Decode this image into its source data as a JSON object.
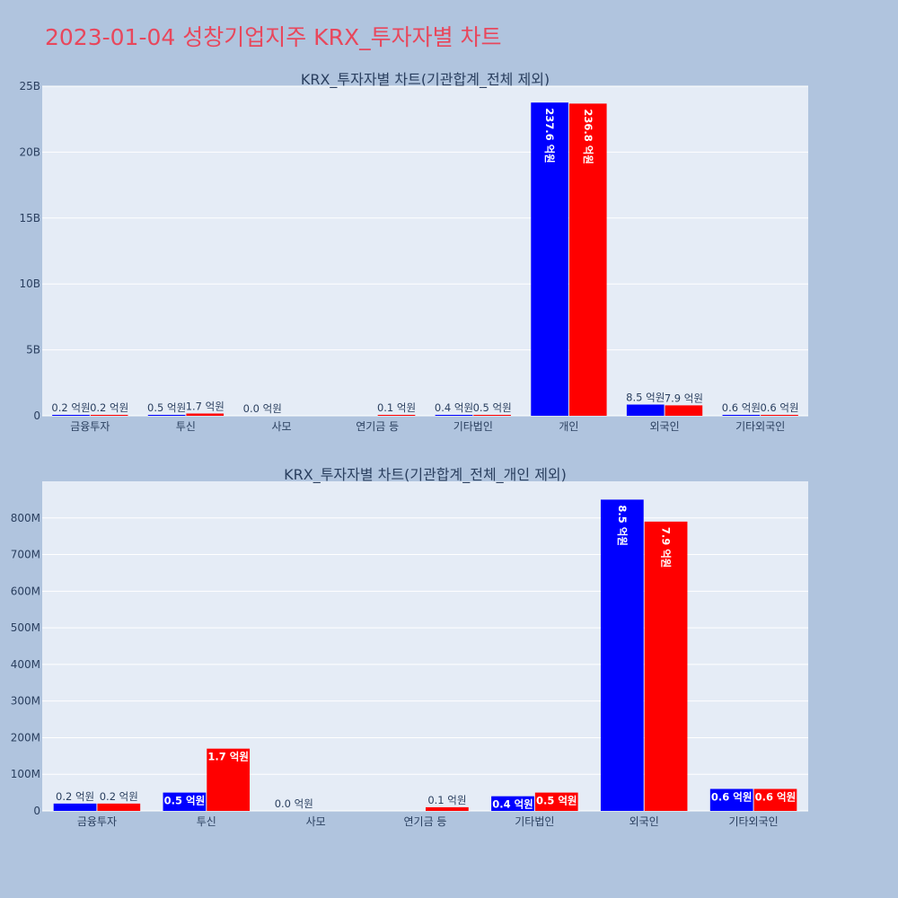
{
  "page_title": "2023-01-04 성창기업지주 KRX_투자자별 차트",
  "colors": {
    "buy": "#0000ff",
    "sell": "#ff0000",
    "title": "#e8475c",
    "background": "#b0c4de",
    "plot": "#e5ecf6"
  },
  "chart_data": [
    {
      "type": "bar",
      "title": "KRX_투자자별 차트(기관합계_전체 제외)",
      "categories": [
        "금융투자",
        "투신",
        "사모",
        "연기금 등",
        "기타법인",
        "개인",
        "외국인",
        "기타외국인"
      ],
      "y_tick_labels": [
        "0",
        "5B",
        "10B",
        "15B",
        "20B",
        "25B"
      ],
      "y_tick_values": [
        0,
        5000000000,
        10000000000,
        15000000000,
        20000000000,
        25000000000
      ],
      "ylim": [
        0,
        25000000000
      ],
      "grid": true,
      "series": [
        {
          "color": "#0000ff",
          "values": [
            20000000,
            50000000,
            0,
            0,
            40000000,
            23760000000,
            850000000,
            60000000
          ],
          "labels": [
            "0.2 억원",
            "0.5 억원",
            "0.0 억원",
            "",
            "0.4 억원",
            "237.6 억원",
            "8.5 억원",
            "0.6 억원"
          ]
        },
        {
          "color": "#ff0000",
          "values": [
            20000000,
            170000000,
            0,
            10000000,
            50000000,
            23680000000,
            790000000,
            60000000
          ],
          "labels": [
            "0.2 억원",
            "1.7 억원",
            "",
            "0.1 억원",
            "0.5 억원",
            "236.8 억원",
            "7.9 억원",
            "0.6 억원"
          ]
        }
      ]
    },
    {
      "type": "bar",
      "title": "KRX_투자자별 차트(기관합계_전체_개인 제외)",
      "categories": [
        "금융투자",
        "투신",
        "사모",
        "연기금 등",
        "기타법인",
        "외국인",
        "기타외국인"
      ],
      "y_tick_labels": [
        "0",
        "100M",
        "200M",
        "300M",
        "400M",
        "500M",
        "600M",
        "700M",
        "800M"
      ],
      "y_tick_values": [
        0,
        100000000,
        200000000,
        300000000,
        400000000,
        500000000,
        600000000,
        700000000,
        800000000
      ],
      "ylim": [
        0,
        900000000
      ],
      "grid": true,
      "series": [
        {
          "color": "#0000ff",
          "values": [
            20000000,
            50000000,
            0,
            0,
            40000000,
            850000000,
            60000000
          ],
          "labels": [
            "0.2 억원",
            "0.5 억원",
            "0.0 억원",
            "",
            "0.4 억원",
            "8.5 억원",
            "0.6 억원"
          ]
        },
        {
          "color": "#ff0000",
          "values": [
            20000000,
            170000000,
            0,
            10000000,
            50000000,
            790000000,
            60000000
          ],
          "labels": [
            "0.2 억원",
            "1.7 억원",
            "",
            "0.1 억원",
            "0.5 억원",
            "7.9 억원",
            "0.6 억원"
          ]
        }
      ]
    }
  ]
}
